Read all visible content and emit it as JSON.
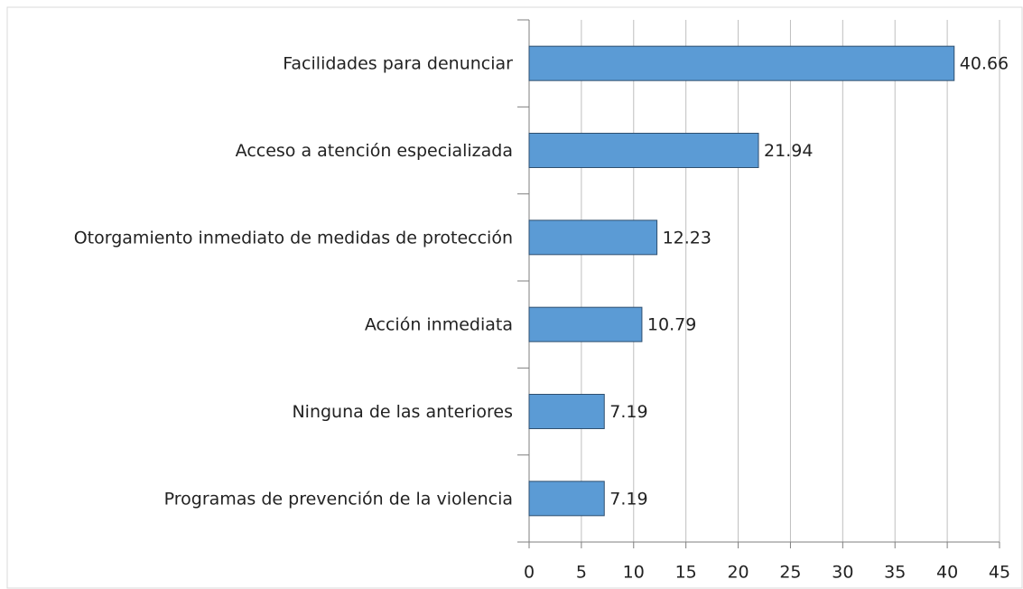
{
  "chart_data": {
    "type": "bar",
    "orientation": "horizontal",
    "categories": [
      "Facilidades para denunciar",
      "Acceso a atención especializada",
      "Otorgamiento inmediato de medidas de protección",
      "Acción inmediata",
      "Ninguna de las anteriores",
      "Programas de prevención de la violencia"
    ],
    "values": [
      40.66,
      21.94,
      12.23,
      10.79,
      7.19,
      7.19
    ],
    "color": "#5b9bd5",
    "xlim": [
      0,
      45
    ],
    "xticks": [
      0,
      5,
      10,
      15,
      20,
      25,
      30,
      35,
      40,
      45
    ],
    "grid": true
  }
}
